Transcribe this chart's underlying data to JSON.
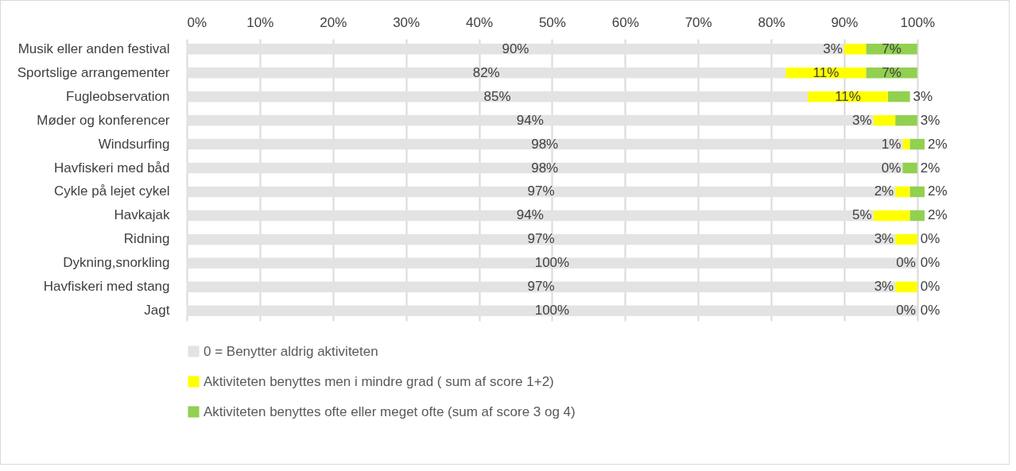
{
  "chart_data": {
    "type": "bar",
    "orientation": "horizontal",
    "stacked": true,
    "categories": [
      "Musik eller anden festival",
      "Sportslige arrangementer",
      "Fugleobservation",
      "Møder og konferencer",
      "Windsurfing",
      "Havfiskeri med båd",
      "Cykle på lejet cykel",
      "Havkajak",
      "Ridning",
      "Dykning,snorkling",
      "Havfiskeri med stang",
      "Jagt"
    ],
    "series": [
      {
        "name": "0 = Benytter aldrig aktiviteten",
        "color": "#e3e3e3",
        "values": [
          90,
          82,
          85,
          94,
          98,
          98,
          97,
          94,
          97,
          100,
          97,
          100
        ],
        "value_labels": [
          "90%",
          "82%",
          "85%",
          "94%",
          "98%",
          "98%",
          "97%",
          "94%",
          "97%",
          "100%",
          "97%",
          "100%"
        ]
      },
      {
        "name": " Aktiviteten  benyttes men i mindre grad ( sum af score 1+2)",
        "color": "#ffff00",
        "values": [
          3,
          11,
          11,
          3,
          1,
          0,
          2,
          5,
          3,
          0,
          3,
          0
        ],
        "value_labels": [
          "3%",
          "11%",
          "11%",
          "3%",
          "1%",
          "0%",
          "2%",
          "5%",
          "3%",
          "0%",
          "3%",
          "0%"
        ]
      },
      {
        "name": "Aktiviteten benyttes ofte eller meget ofte (sum af score 3 og 4)",
        "color": "#92d050",
        "values": [
          7,
          7,
          3,
          3,
          2,
          2,
          2,
          2,
          0,
          0,
          0,
          0
        ],
        "value_labels": [
          "7%",
          "7%",
          "3%",
          "3%",
          "2%",
          "2%",
          "2%",
          "2%",
          "0%",
          "0%",
          "0%",
          "0%"
        ]
      }
    ],
    "xlim": [
      0,
      101
    ],
    "xticks": [
      {
        "value": 0,
        "label": "0%"
      },
      {
        "value": 10,
        "label": "10%"
      },
      {
        "value": 20,
        "label": "20%"
      },
      {
        "value": 30,
        "label": "30%"
      },
      {
        "value": 40,
        "label": "40%"
      },
      {
        "value": 50,
        "label": "50%"
      },
      {
        "value": 60,
        "label": "60%"
      },
      {
        "value": 70,
        "label": "70%"
      },
      {
        "value": 80,
        "label": "80%"
      },
      {
        "value": 90,
        "label": "90%"
      },
      {
        "value": 100,
        "label": "100%"
      }
    ],
    "grid": "x",
    "legend": "bottom"
  }
}
